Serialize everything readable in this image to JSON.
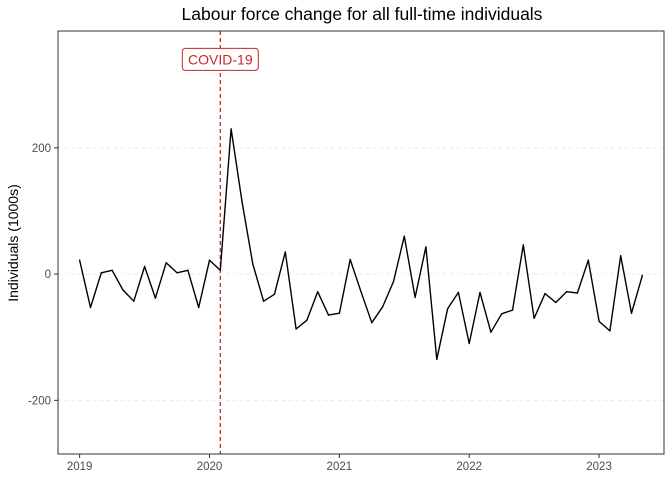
{
  "chart_data": {
    "type": "line",
    "title": "Labour force change for all full-time individuals",
    "xlabel": "",
    "ylabel": "Individuals (1000s)",
    "x_ticks": [
      "2019",
      "2020",
      "2021",
      "2022",
      "2023"
    ],
    "y_ticks": [
      -200,
      0,
      200
    ],
    "y_tick_labels": [
      "-200",
      "0",
      "200"
    ],
    "xlim": [
      "2018-11",
      "2023-07"
    ],
    "ylim": [
      -285,
      385
    ],
    "grid": "horizontal dotted",
    "line_color": "#000000",
    "series": [
      {
        "x": [
          "2019-01",
          "2019-02",
          "2019-03",
          "2019-04",
          "2019-05",
          "2019-06",
          "2019-07",
          "2019-08",
          "2019-09",
          "2019-10",
          "2019-11",
          "2019-12",
          "2020-01",
          "2020-02",
          "2020-03",
          "2020-04",
          "2020-05",
          "2020-06",
          "2020-07",
          "2020-08",
          "2020-09",
          "2020-10",
          "2020-11",
          "2020-12",
          "2021-01",
          "2021-02",
          "2021-03",
          "2021-04",
          "2021-05",
          "2021-06",
          "2021-07",
          "2021-08",
          "2021-09",
          "2021-10",
          "2021-11",
          "2021-12",
          "2022-01",
          "2022-02",
          "2022-03",
          "2022-04",
          "2022-05",
          "2022-06",
          "2022-07",
          "2022-08",
          "2022-09",
          "2022-10",
          "2022-11",
          "2022-12",
          "2023-01",
          "2023-02",
          "2023-03",
          "2023-04",
          "2023-05"
        ],
        "values": [
          22,
          -53,
          2,
          6,
          -25,
          -43,
          12,
          -38,
          18,
          2,
          6,
          -53,
          22,
          6,
          230,
          115,
          16,
          -43,
          -32,
          35,
          -87,
          -73,
          -28,
          -65,
          -62,
          23,
          -28,
          -77,
          -52,
          -12,
          60,
          -37,
          43,
          -135,
          -55,
          -29,
          -110,
          -29,
          -92,
          -63,
          -57,
          46,
          -70,
          -31,
          -45,
          -28,
          -30,
          22,
          -75,
          -90,
          29,
          -62,
          -2
        ]
      }
    ],
    "annotations": [
      {
        "label": "COVID-19",
        "x": "2020-02",
        "style": "dashed vertical line",
        "color": "#c62828"
      }
    ]
  }
}
